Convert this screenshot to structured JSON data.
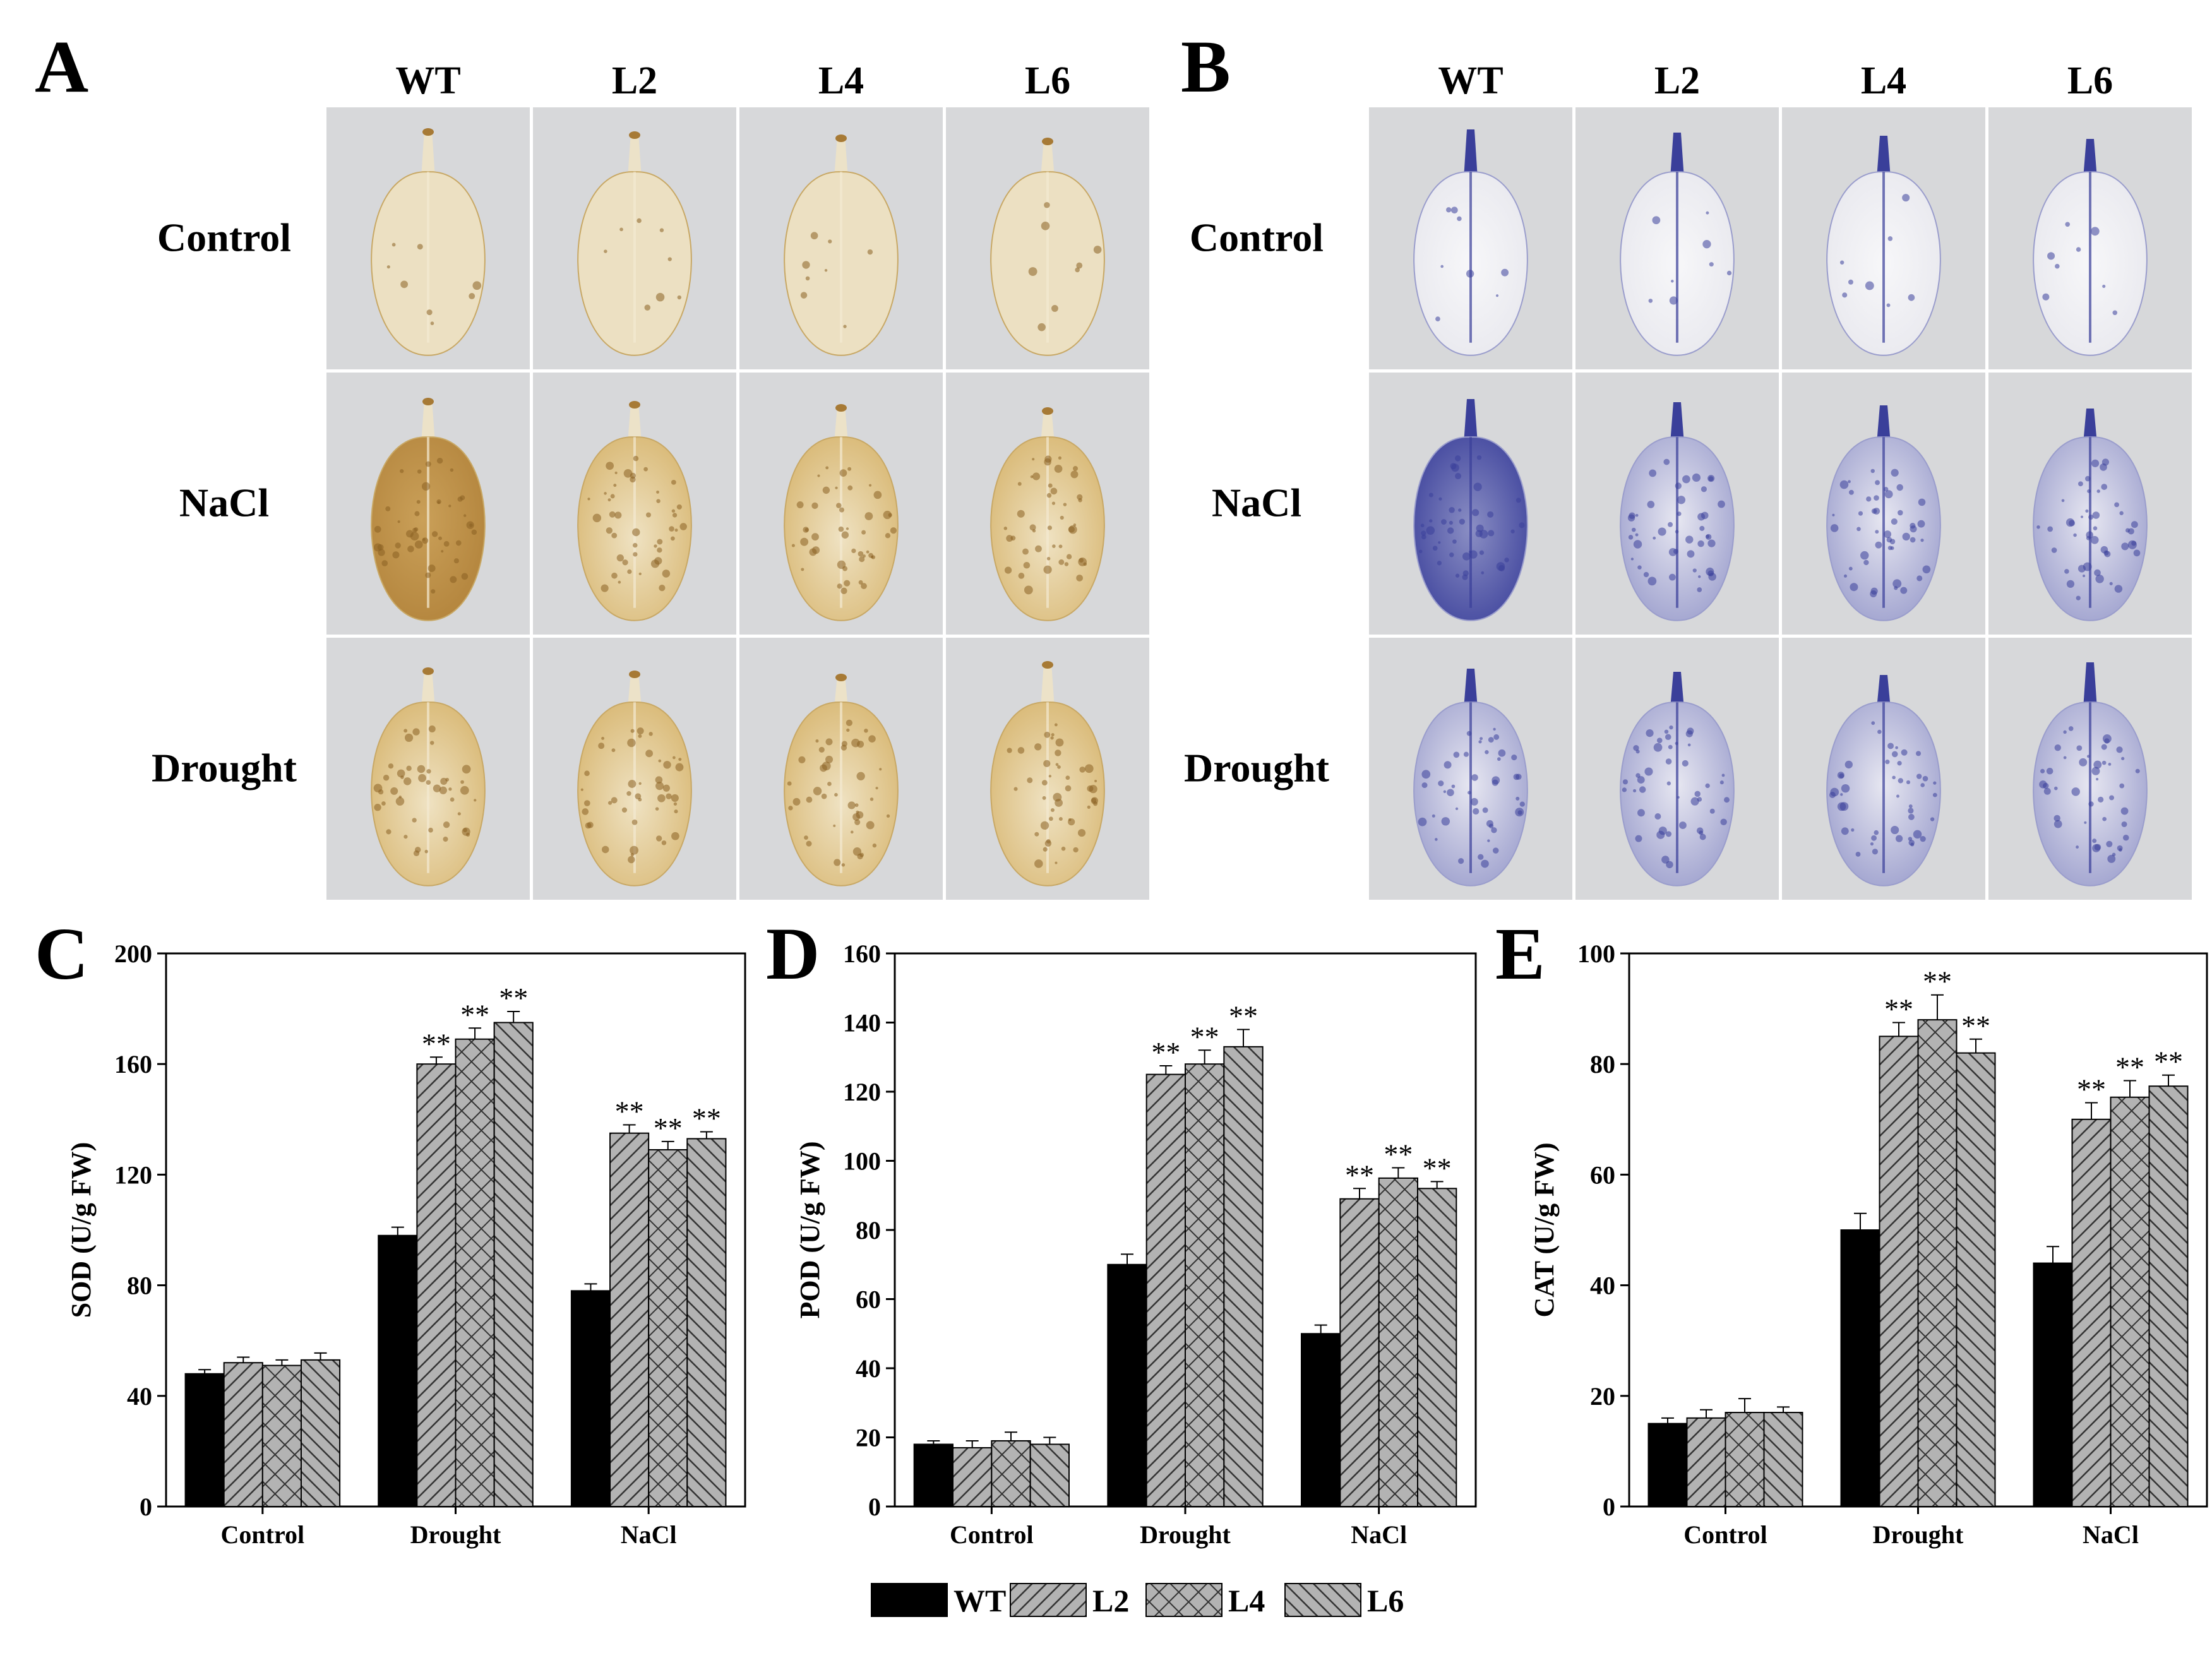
{
  "panels": {
    "A": {
      "letter": "A",
      "stain": "DAB",
      "columns": [
        "WT",
        "L2",
        "L4",
        "L6"
      ],
      "rows": [
        "Control",
        "NaCl",
        "Drought"
      ]
    },
    "B": {
      "letter": "B",
      "stain": "NBT",
      "columns": [
        "WT",
        "L2",
        "L4",
        "L6"
      ],
      "rows": [
        "Control",
        "NaCl",
        "Drought"
      ]
    }
  },
  "colors": {
    "photo_bg": "#d7d8da",
    "dab_leaf": "#e6d3aa",
    "dab_dark": "#a77a35",
    "nbt_leaf": "#f2f2f4",
    "nbt_blue": "#3a3f9a",
    "bar_wt": "#000000",
    "bar_hatch": "#555555"
  },
  "legend": [
    {
      "label": "WT",
      "pattern": "solid"
    },
    {
      "label": "L2",
      "pattern": "diag-right"
    },
    {
      "label": "L4",
      "pattern": "cross"
    },
    {
      "label": "L6",
      "pattern": "diag-left"
    }
  ],
  "chart_data": [
    {
      "panel": "C",
      "type": "bar",
      "ylabel": "SOD (U/g FW)",
      "ylim": [
        0,
        200
      ],
      "yticks": [
        0,
        40,
        80,
        120,
        160,
        200
      ],
      "categories": [
        "Control",
        "Drought",
        "NaCl"
      ],
      "series": [
        {
          "name": "WT",
          "values": [
            48,
            98,
            78
          ],
          "errors": [
            1.5,
            3,
            2.5
          ]
        },
        {
          "name": "L2",
          "values": [
            52,
            160,
            135
          ],
          "errors": [
            2,
            2.5,
            3
          ]
        },
        {
          "name": "L4",
          "values": [
            51,
            169,
            129
          ],
          "errors": [
            2,
            4,
            3
          ]
        },
        {
          "name": "L6",
          "values": [
            53,
            175,
            133
          ],
          "errors": [
            2.5,
            4,
            2.5
          ]
        }
      ],
      "annotations": [
        {
          "category": "Drought",
          "series": "L2",
          "text": "**"
        },
        {
          "category": "Drought",
          "series": "L4",
          "text": "**"
        },
        {
          "category": "Drought",
          "series": "L6",
          "text": "**"
        },
        {
          "category": "NaCl",
          "series": "L2",
          "text": "**"
        },
        {
          "category": "NaCl",
          "series": "L4",
          "text": "**"
        },
        {
          "category": "NaCl",
          "series": "L6",
          "text": "**"
        }
      ]
    },
    {
      "panel": "D",
      "type": "bar",
      "ylabel": "POD (U/g FW)",
      "ylim": [
        0,
        160
      ],
      "yticks": [
        0,
        20,
        40,
        60,
        80,
        100,
        120,
        140,
        160
      ],
      "categories": [
        "Control",
        "Drought",
        "NaCl"
      ],
      "series": [
        {
          "name": "WT",
          "values": [
            18,
            70,
            50
          ],
          "errors": [
            1,
            3,
            2.5
          ]
        },
        {
          "name": "L2",
          "values": [
            17,
            125,
            89
          ],
          "errors": [
            2,
            2.5,
            3
          ]
        },
        {
          "name": "L4",
          "values": [
            19,
            128,
            95
          ],
          "errors": [
            2.5,
            4,
            3
          ]
        },
        {
          "name": "L6",
          "values": [
            18,
            133,
            92
          ],
          "errors": [
            2,
            5,
            2
          ]
        }
      ],
      "annotations": [
        {
          "category": "Drought",
          "series": "L2",
          "text": "**"
        },
        {
          "category": "Drought",
          "series": "L4",
          "text": "**"
        },
        {
          "category": "Drought",
          "series": "L6",
          "text": "**"
        },
        {
          "category": "NaCl",
          "series": "L2",
          "text": "**"
        },
        {
          "category": "NaCl",
          "series": "L4",
          "text": "**"
        },
        {
          "category": "NaCl",
          "series": "L6",
          "text": "**"
        }
      ]
    },
    {
      "panel": "E",
      "type": "bar",
      "ylabel": "CAT (U/g FW)",
      "ylim": [
        0,
        100
      ],
      "yticks": [
        0,
        20,
        40,
        60,
        80,
        100
      ],
      "categories": [
        "Control",
        "Drought",
        "NaCl"
      ],
      "series": [
        {
          "name": "WT",
          "values": [
            15,
            50,
            44
          ],
          "errors": [
            1,
            3,
            3
          ]
        },
        {
          "name": "L2",
          "values": [
            16,
            85,
            70
          ],
          "errors": [
            1.5,
            2.5,
            3
          ]
        },
        {
          "name": "L4",
          "values": [
            17,
            88,
            74
          ],
          "errors": [
            2.5,
            4.5,
            3
          ]
        },
        {
          "name": "L6",
          "values": [
            17,
            82,
            76
          ],
          "errors": [
            1,
            2.5,
            2
          ]
        }
      ],
      "annotations": [
        {
          "category": "Drought",
          "series": "L2",
          "text": "**"
        },
        {
          "category": "Drought",
          "series": "L4",
          "text": "**"
        },
        {
          "category": "Drought",
          "series": "L6",
          "text": "**"
        },
        {
          "category": "NaCl",
          "series": "L2",
          "text": "**"
        },
        {
          "category": "NaCl",
          "series": "L4",
          "text": "**"
        },
        {
          "category": "NaCl",
          "series": "L6",
          "text": "**"
        }
      ]
    }
  ]
}
